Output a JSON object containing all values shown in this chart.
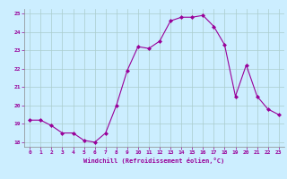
{
  "x": [
    0,
    1,
    2,
    3,
    4,
    5,
    6,
    7,
    8,
    9,
    10,
    11,
    12,
    13,
    14,
    15,
    16,
    17,
    18,
    19,
    20,
    21,
    22,
    23
  ],
  "y": [
    19.2,
    19.2,
    18.9,
    18.5,
    18.5,
    18.1,
    18.0,
    18.5,
    20.0,
    21.9,
    23.2,
    23.1,
    23.5,
    24.6,
    24.8,
    24.8,
    24.9,
    24.3,
    23.3,
    20.5,
    22.2,
    20.5,
    19.8,
    19.5
  ],
  "line_color": "#990099",
  "marker": "D",
  "marker_size": 2.0,
  "bg_color": "#cceeff",
  "grid_color": "#aacccc",
  "xlabel": "Windchill (Refroidissement éolien,°C)",
  "xlabel_color": "#990099",
  "tick_color": "#990099",
  "ylim": [
    17.75,
    25.25
  ],
  "xlim": [
    -0.5,
    23.5
  ],
  "yticks": [
    18,
    19,
    20,
    21,
    22,
    23,
    24,
    25
  ],
  "xticks": [
    0,
    1,
    2,
    3,
    4,
    5,
    6,
    7,
    8,
    9,
    10,
    11,
    12,
    13,
    14,
    15,
    16,
    17,
    18,
    19,
    20,
    21,
    22,
    23
  ]
}
